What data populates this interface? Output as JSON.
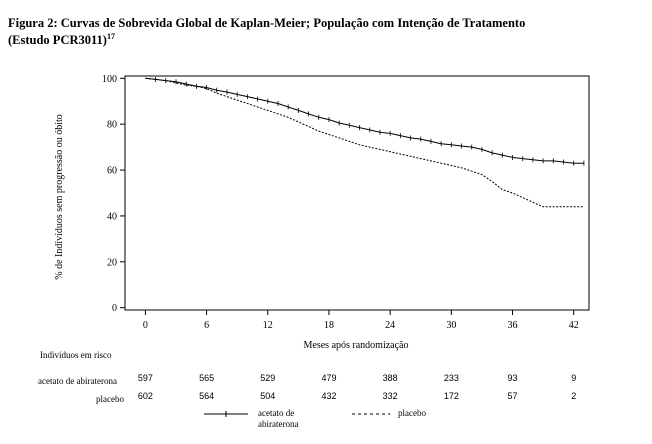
{
  "title": {
    "line1": "Figura 2: Curvas de Sobrevida Global de Kaplan-Meier; População com Intenção de Tratamento",
    "line2": "(Estudo PCR3011)",
    "superscript": "17"
  },
  "chart_data": {
    "type": "line",
    "ylabel": "% de Indivíduos sem progressão ou óbito",
    "xlabel": "Meses após randomização",
    "xlim": [
      -2,
      43.5
    ],
    "ylim": [
      -1,
      101
    ],
    "xticks": [
      "0",
      "6",
      "12",
      "18",
      "24",
      "30",
      "36",
      "42"
    ],
    "yticks": [
      "0",
      "20",
      "40",
      "60",
      "80",
      "100"
    ],
    "grid": false,
    "series": [
      {
        "name": "acetato de abiraterona",
        "style": "solid",
        "color": "#000000",
        "x": [
          0,
          1,
          2,
          3,
          4,
          5,
          6,
          7,
          8,
          9,
          10,
          11,
          12,
          13,
          14,
          15,
          16,
          17,
          18,
          19,
          20,
          21,
          22,
          23,
          24,
          25,
          26,
          27,
          28,
          29,
          30,
          31,
          32,
          33,
          34,
          35,
          36,
          37,
          38,
          39,
          40,
          41,
          42,
          43
        ],
        "y": [
          100,
          99.5,
          99,
          98.5,
          97.5,
          96.5,
          96,
          94.8,
          94,
          93,
          92,
          91,
          90,
          89,
          87.5,
          86,
          84.5,
          83,
          82,
          80.5,
          79.5,
          78.5,
          77.5,
          76.5,
          76,
          75,
          74,
          73.5,
          72.5,
          71.5,
          71,
          70.5,
          70,
          69,
          67.5,
          66.5,
          65.5,
          65,
          64.5,
          64,
          64,
          63.5,
          63,
          63
        ]
      },
      {
        "name": "placebo",
        "style": "dashed",
        "color": "#000000",
        "x": [
          0,
          1,
          2,
          3,
          4,
          5,
          6,
          7,
          8,
          9,
          10,
          11,
          12,
          13,
          14,
          15,
          16,
          17,
          18,
          19,
          20,
          21,
          22,
          23,
          24,
          25,
          26,
          27,
          28,
          29,
          30,
          31,
          32,
          33,
          34,
          35,
          36,
          37,
          38,
          39,
          40,
          41,
          42,
          43
        ],
        "y": [
          100,
          99.5,
          99,
          98,
          97,
          96.5,
          95.5,
          93.5,
          92,
          90.5,
          89,
          87.5,
          86,
          84.5,
          83,
          81,
          79,
          77,
          75.5,
          74,
          72.5,
          71,
          70,
          69,
          68,
          67,
          66,
          65,
          64,
          63,
          62,
          61,
          59.5,
          58,
          55,
          51.5,
          50,
          48,
          46,
          44,
          44,
          44,
          44,
          44
        ]
      }
    ],
    "risk_table": {
      "heading": "Indivíduos em risco",
      "rows": [
        {
          "label": "acetato de abiraterona",
          "values": [
            "597",
            "565",
            "529",
            "479",
            "388",
            "233",
            "93",
            "9"
          ]
        },
        {
          "label": "placebo",
          "values": [
            "602",
            "564",
            "504",
            "432",
            "332",
            "172",
            "57",
            "2"
          ]
        }
      ]
    },
    "legend": {
      "placement": "bottom",
      "items": [
        {
          "label_line1": "acetato de",
          "label_line2": "abiraterona",
          "style": "solid"
        },
        {
          "label_line1": "placebo",
          "label_line2": "",
          "style": "dashed"
        }
      ]
    }
  }
}
